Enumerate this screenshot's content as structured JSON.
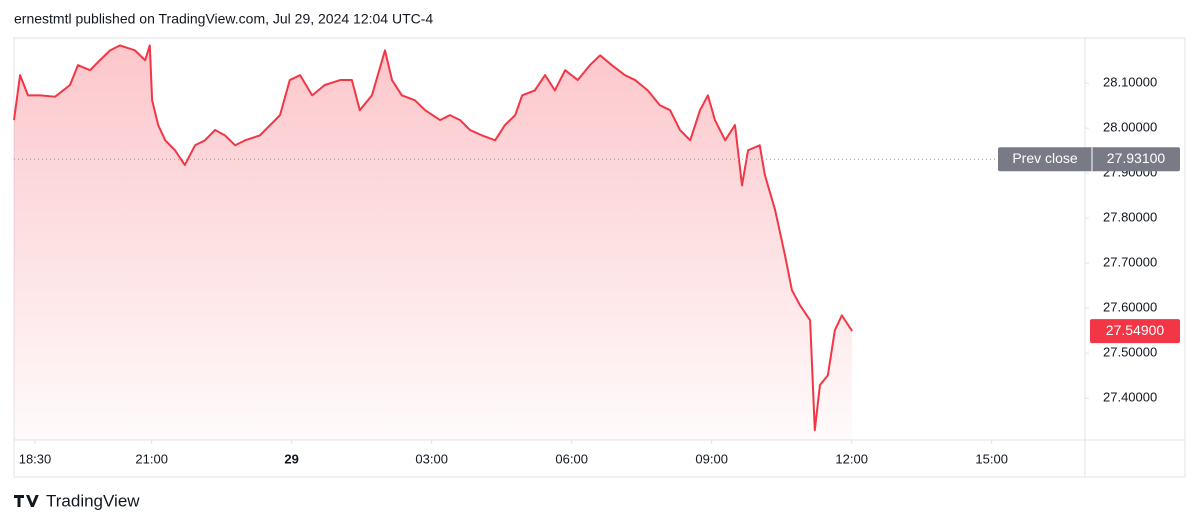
{
  "header": "ernestmtl published on TradingView.com, Jul 29, 2024 12:04 UTC-4",
  "footer": "TradingView",
  "chart_data": {
    "type": "area",
    "x": [
      18.05,
      18.18,
      18.35,
      18.61,
      18.93,
      19.25,
      19.42,
      19.68,
      19.89,
      20.11,
      20.32,
      20.64,
      20.86,
      20.96,
      21.01,
      21.14,
      21.29,
      21.5,
      21.71,
      21.93,
      22.14,
      22.36,
      22.57,
      22.79,
      23.0,
      23.32,
      23.54,
      23.75,
      23.96,
      24.18,
      24.44,
      24.71,
      25.04,
      25.29,
      25.46,
      25.72,
      26.0,
      26.15,
      26.36,
      26.64,
      26.86,
      27.18,
      27.39,
      27.61,
      27.82,
      28.08,
      28.36,
      28.57,
      28.79,
      28.94,
      29.21,
      29.43,
      29.64,
      29.86,
      30.13,
      30.39,
      30.61,
      30.86,
      31.14,
      31.36,
      31.63,
      31.89,
      32.11,
      32.32,
      32.54,
      32.75,
      32.92,
      33.07,
      33.29,
      33.5,
      33.65,
      33.78,
      34.03,
      34.14,
      34.36,
      34.57,
      34.72,
      34.89,
      35.11,
      35.21,
      35.32,
      35.49,
      35.64,
      35.79,
      36.01
    ],
    "series": [
      {
        "color": "#f23645",
        "values": [
          28.018,
          28.118,
          28.073,
          28.073,
          28.07,
          28.096,
          28.14,
          28.129,
          28.151,
          28.173,
          28.184,
          28.173,
          28.151,
          28.184,
          28.062,
          28.007,
          27.973,
          27.951,
          27.918,
          27.962,
          27.973,
          27.996,
          27.984,
          27.962,
          27.973,
          27.984,
          28.007,
          28.029,
          28.107,
          28.118,
          28.073,
          28.096,
          28.107,
          28.107,
          28.04,
          28.073,
          28.173,
          28.107,
          28.073,
          28.062,
          28.04,
          28.018,
          28.029,
          28.018,
          27.996,
          27.984,
          27.973,
          28.007,
          28.029,
          28.073,
          28.084,
          28.118,
          28.084,
          28.129,
          28.107,
          28.14,
          28.162,
          28.14,
          28.118,
          28.107,
          28.084,
          28.051,
          28.04,
          27.996,
          27.973,
          28.04,
          28.073,
          28.018,
          27.973,
          28.007,
          27.873,
          27.951,
          27.962,
          27.896,
          27.818,
          27.718,
          27.64,
          27.607,
          27.573,
          27.329,
          27.429,
          27.451,
          27.551,
          27.584,
          27.549
        ]
      }
    ],
    "last_value_label": "27.54900",
    "prev_close": {
      "label": "Prev close",
      "value": 27.931,
      "value_label": "27.93100",
      "color": "#787b86"
    },
    "xlim": [
      18.05,
      41.0
    ],
    "xticks": [
      {
        "value": 18.5,
        "label": "18:30"
      },
      {
        "value": 21,
        "label": "21:00"
      },
      {
        "value": 24,
        "label": "29"
      },
      {
        "value": 27,
        "label": "03:00"
      },
      {
        "value": 30,
        "label": "06:00"
      },
      {
        "value": 33,
        "label": "09:00"
      },
      {
        "value": 36,
        "label": "12:00"
      },
      {
        "value": 39,
        "label": "15:00"
      }
    ],
    "ylim": [
      27.307,
      28.196
    ],
    "yticks": [
      {
        "value": 27.4,
        "label": "27.40000"
      },
      {
        "value": 27.5,
        "label": "27.50000"
      },
      {
        "value": 27.6,
        "label": "27.60000"
      },
      {
        "value": 27.7,
        "label": "27.70000"
      },
      {
        "value": 27.8,
        "label": "27.80000"
      },
      {
        "value": 27.9,
        "label": "27.90000"
      },
      {
        "value": 28.0,
        "label": "28.00000"
      },
      {
        "value": 28.1,
        "label": "28.10000"
      }
    ],
    "grid": false
  }
}
